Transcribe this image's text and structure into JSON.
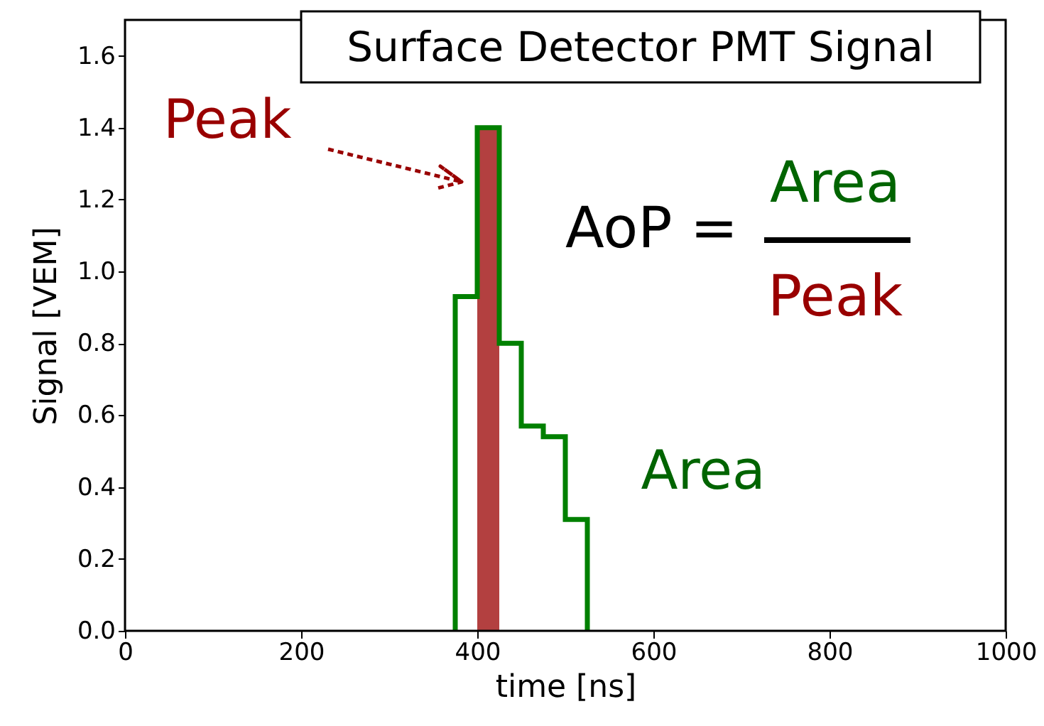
{
  "chart_data": {
    "type": "histogram",
    "title": "Surface Detector PMT Signal",
    "xlabel": "time [ns]",
    "ylabel": "Signal [VEM]",
    "bins": [
      375,
      400,
      425,
      450,
      475,
      500,
      525
    ],
    "series": [
      {
        "color": "#008000",
        "values": [
          0.93,
          1.4,
          0.8,
          0.57,
          0.54,
          0.31
        ]
      },
      {
        "color": "#990000",
        "values": [
          null,
          1.4,
          null,
          null,
          null,
          null
        ]
      }
    ],
    "xlim": [
      0,
      1000
    ],
    "ylim": [
      0,
      1.7
    ],
    "xticks": [
      0,
      200,
      400,
      600,
      800,
      {
        "value": 1000,
        "label": "1000"
      }
    ],
    "yticks": [
      {
        "value": 0,
        "label": "0.0"
      },
      0.2,
      0.4,
      0.6,
      0.8,
      {
        "value": 1,
        "label": "1.0"
      },
      1.2,
      1.4,
      1.6
    ],
    "grid": false,
    "annotations": [
      "Peak",
      "AoP =",
      "Area",
      "Peak",
      "Area"
    ]
  }
}
